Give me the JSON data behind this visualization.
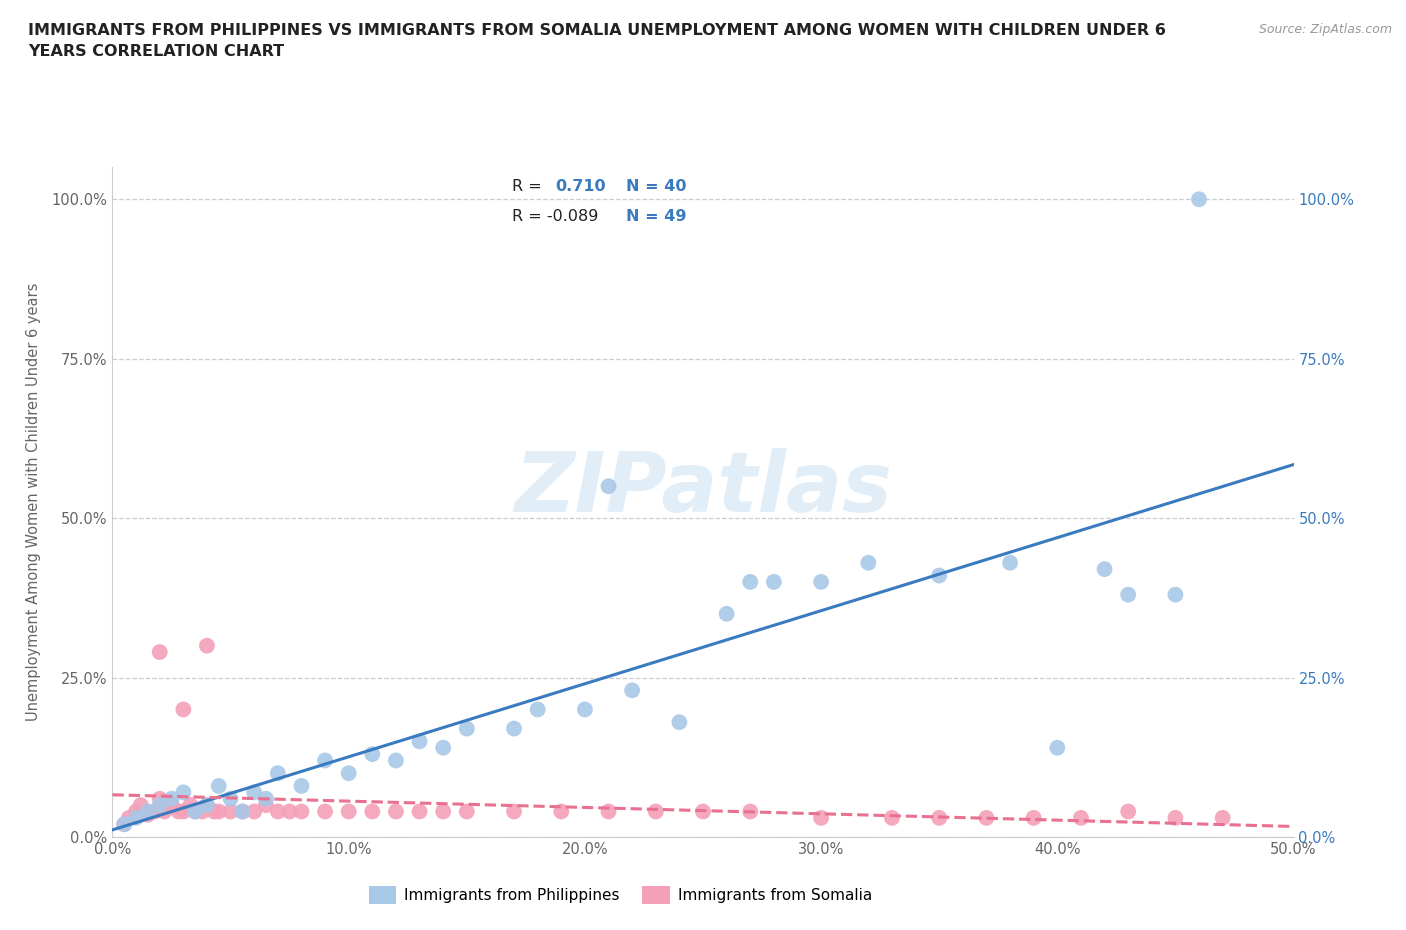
{
  "title": "IMMIGRANTS FROM PHILIPPINES VS IMMIGRANTS FROM SOMALIA UNEMPLOYMENT AMONG WOMEN WITH CHILDREN UNDER 6\nYEARS CORRELATION CHART",
  "source": "Source: ZipAtlas.com",
  "ylabel": "Unemployment Among Women with Children Under 6 years",
  "xlim": [
    0.0,
    0.5
  ],
  "ylim": [
    0.0,
    1.05
  ],
  "yticks": [
    0.0,
    0.25,
    0.5,
    0.75,
    1.0
  ],
  "ytick_labels": [
    "0.0%",
    "25.0%",
    "50.0%",
    "75.0%",
    "100.0%"
  ],
  "xticks": [
    0.0,
    0.1,
    0.2,
    0.3,
    0.4,
    0.5
  ],
  "xtick_labels": [
    "0.0%",
    "10.0%",
    "20.0%",
    "30.0%",
    "40.0%",
    "50.0%"
  ],
  "philippines_R": 0.71,
  "philippines_N": 40,
  "somalia_R": -0.089,
  "somalia_N": 49,
  "philippines_color": "#a8c8e8",
  "somalia_color": "#f4a0b8",
  "philippines_line_color": "#3a7abf",
  "somalia_line_color": "#e87090",
  "watermark": "ZIPatlas",
  "philippines_x": [
    0.005,
    0.01,
    0.015,
    0.02,
    0.025,
    0.03,
    0.035,
    0.04,
    0.045,
    0.05,
    0.055,
    0.06,
    0.065,
    0.07,
    0.08,
    0.09,
    0.1,
    0.11,
    0.12,
    0.13,
    0.14,
    0.15,
    0.17,
    0.18,
    0.2,
    0.21,
    0.22,
    0.24,
    0.26,
    0.27,
    0.28,
    0.3,
    0.32,
    0.35,
    0.38,
    0.4,
    0.42,
    0.43,
    0.45,
    0.46
  ],
  "philippines_y": [
    0.02,
    0.03,
    0.04,
    0.05,
    0.06,
    0.07,
    0.04,
    0.05,
    0.08,
    0.06,
    0.04,
    0.07,
    0.06,
    0.1,
    0.08,
    0.12,
    0.1,
    0.13,
    0.12,
    0.15,
    0.14,
    0.17,
    0.17,
    0.2,
    0.2,
    0.55,
    0.23,
    0.18,
    0.35,
    0.4,
    0.4,
    0.4,
    0.43,
    0.41,
    0.43,
    0.14,
    0.42,
    0.38,
    0.38,
    1.0
  ],
  "somalia_x": [
    0.005,
    0.007,
    0.01,
    0.012,
    0.015,
    0.018,
    0.02,
    0.022,
    0.025,
    0.028,
    0.03,
    0.033,
    0.035,
    0.038,
    0.04,
    0.043,
    0.045,
    0.05,
    0.055,
    0.06,
    0.065,
    0.07,
    0.075,
    0.08,
    0.09,
    0.1,
    0.11,
    0.12,
    0.13,
    0.14,
    0.15,
    0.17,
    0.19,
    0.21,
    0.23,
    0.25,
    0.27,
    0.3,
    0.33,
    0.35,
    0.37,
    0.39,
    0.41,
    0.43,
    0.45,
    0.47,
    0.02,
    0.03,
    0.04
  ],
  "somalia_y": [
    0.02,
    0.03,
    0.04,
    0.05,
    0.035,
    0.04,
    0.06,
    0.04,
    0.05,
    0.04,
    0.04,
    0.05,
    0.04,
    0.04,
    0.05,
    0.04,
    0.04,
    0.04,
    0.04,
    0.04,
    0.05,
    0.04,
    0.04,
    0.04,
    0.04,
    0.04,
    0.04,
    0.04,
    0.04,
    0.04,
    0.04,
    0.04,
    0.04,
    0.04,
    0.04,
    0.04,
    0.04,
    0.03,
    0.03,
    0.03,
    0.03,
    0.03,
    0.03,
    0.04,
    0.03,
    0.03,
    0.29,
    0.2,
    0.3
  ],
  "background_color": "#ffffff",
  "grid_color": "#cccccc",
  "title_color": "#222222",
  "axis_color": "#666666",
  "right_tick_color": "#3a7abf"
}
